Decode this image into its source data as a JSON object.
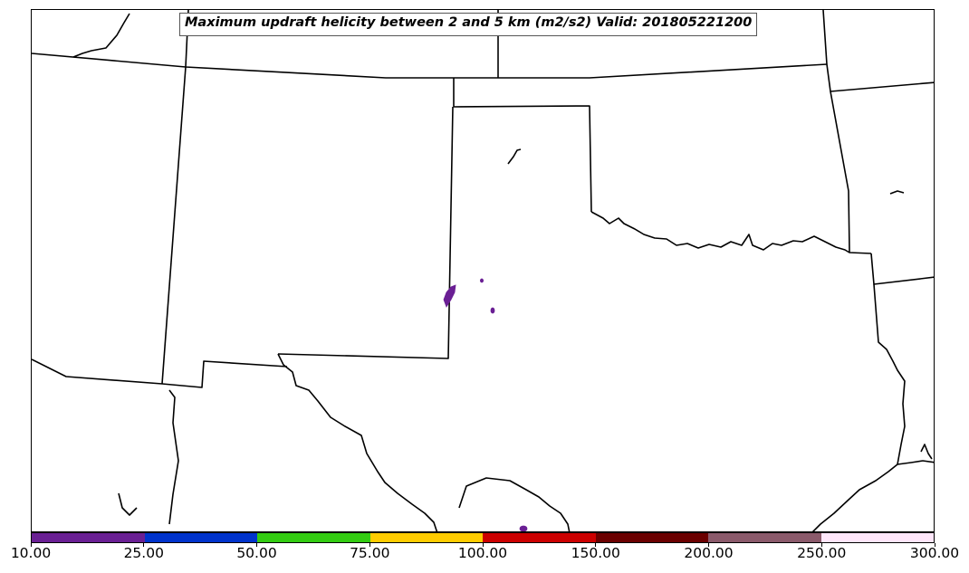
{
  "title": "Maximum updraft helicity between 2 and 5 km (m2/s2) Valid: 201805221200",
  "colorbar": {
    "levels": [
      "10.00",
      "25.00",
      "50.00",
      "75.00",
      "100.00",
      "150.00",
      "200.00",
      "250.00",
      "300.00"
    ],
    "colors": [
      "#6a1f94",
      "#0033cc",
      "#33cc11",
      "#ffcc00",
      "#cc0000",
      "#6b0000",
      "#8b5a6b",
      "#ffe6fa"
    ]
  },
  "field_color": "#6a1f94"
}
